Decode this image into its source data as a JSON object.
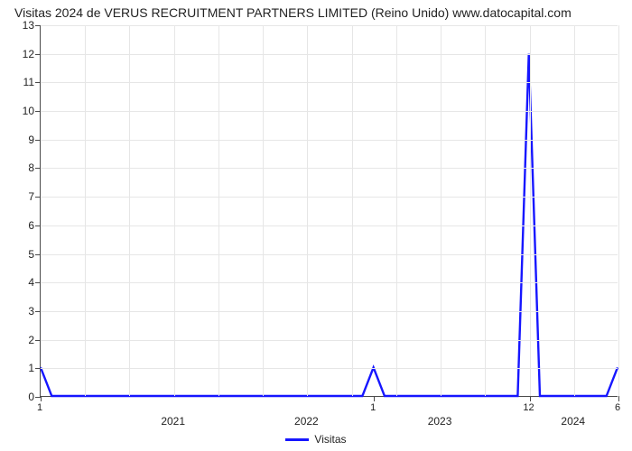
{
  "chart": {
    "type": "line",
    "title": "Visitas 2024 de VERUS RECRUITMENT PARTNERS LIMITED (Reino Unido) www.datocapital.com",
    "title_fontsize": 14,
    "title_color": "#222222",
    "background_color": "#ffffff",
    "grid_color": "#e6e6e6",
    "axis_color": "#4a4a4a",
    "tick_font_size": 12,
    "line_color": "#1616ff",
    "line_width": 2.4,
    "ylim": [
      0,
      13
    ],
    "yticks": [
      0,
      1,
      2,
      3,
      4,
      5,
      6,
      7,
      8,
      9,
      10,
      11,
      12,
      13
    ],
    "x_count": 53,
    "x_major_gridlines": [
      0,
      4,
      8,
      12,
      16,
      20,
      24,
      28,
      32,
      36,
      40,
      44,
      48,
      52
    ],
    "x_tick_labels_small": [
      {
        "i": 0,
        "label": "1"
      },
      {
        "i": 30,
        "label": "1"
      },
      {
        "i": 44,
        "label": "12"
      },
      {
        "i": 52,
        "label": "6"
      }
    ],
    "x_year_labels": [
      {
        "i": 12,
        "label": "2021"
      },
      {
        "i": 24,
        "label": "2022"
      },
      {
        "i": 36,
        "label": "2023"
      },
      {
        "i": 48,
        "label": "2024"
      }
    ],
    "series": {
      "name": "Visitas",
      "values": [
        1,
        0,
        0,
        0,
        0,
        0,
        0,
        0,
        0,
        0,
        0,
        0,
        0,
        0,
        0,
        0,
        0,
        0,
        0,
        0,
        0,
        0,
        0,
        0,
        0,
        0,
        0,
        0,
        0,
        0,
        1,
        0,
        0,
        0,
        0,
        0,
        0,
        0,
        0,
        0,
        0,
        0,
        0,
        0,
        12,
        0,
        0,
        0,
        0,
        0,
        0,
        0,
        1
      ]
    },
    "legend_label": "Visitas"
  }
}
